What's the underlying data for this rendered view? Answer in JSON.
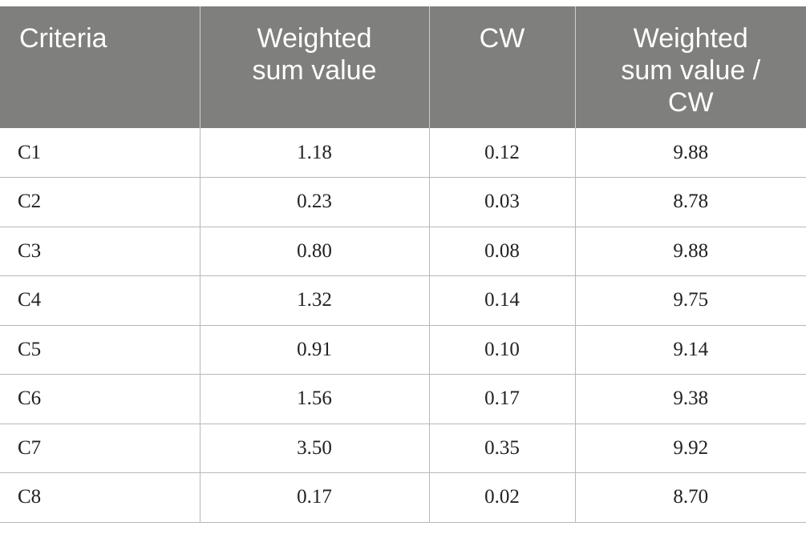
{
  "table": {
    "headers": [
      [
        "Criteria"
      ],
      [
        "Weighted",
        "sum value"
      ],
      [
        "CW"
      ],
      [
        "Weighted",
        "sum value /",
        "CW"
      ]
    ],
    "rows": [
      [
        "C1",
        "1.18",
        "0.12",
        "9.88"
      ],
      [
        "C2",
        "0.23",
        "0.03",
        "8.78"
      ],
      [
        "C3",
        "0.80",
        "0.08",
        "9.88"
      ],
      [
        "C4",
        "1.32",
        "0.14",
        "9.75"
      ],
      [
        "C5",
        "0.91",
        "0.10",
        "9.14"
      ],
      [
        "C6",
        "1.56",
        "0.17",
        "9.38"
      ],
      [
        "C7",
        "3.50",
        "0.35",
        "9.92"
      ],
      [
        "C8",
        "0.17",
        "0.02",
        "8.70"
      ]
    ]
  },
  "colors": {
    "header_bg": "#7f7f7d",
    "header_text": "#ffffff",
    "grid": "#b8b8b8"
  }
}
